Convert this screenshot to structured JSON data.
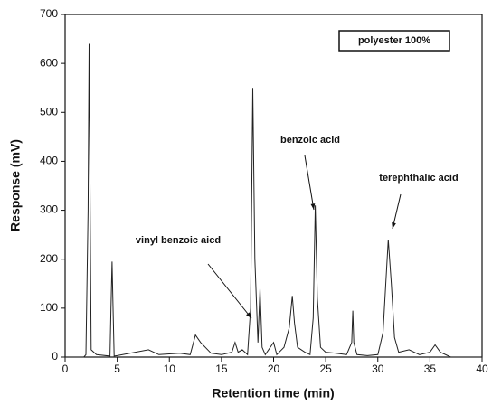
{
  "chart_data": {
    "type": "line",
    "x_label": "Retention time (min)",
    "y_label": "Response (mV)",
    "x": [
      0,
      1.8,
      2.0,
      2.2,
      2.3,
      2.4,
      2.5,
      3,
      4.3,
      4.4,
      4.5,
      4.6,
      4.7,
      5,
      8,
      9,
      11,
      12,
      12.5,
      13,
      14,
      15,
      16,
      16.3,
      16.6,
      17,
      17.5,
      17.8,
      18,
      18.2,
      18.5,
      18.7,
      18.9,
      19.2,
      20,
      20.3,
      21,
      21.5,
      21.8,
      22,
      22.3,
      23,
      23.5,
      23.8,
      24,
      24.2,
      24.5,
      25,
      26,
      27,
      27.5,
      27.6,
      27.7,
      28,
      29,
      30,
      30.5,
      31,
      31.3,
      31.6,
      32,
      33,
      34,
      35,
      35.5,
      36,
      37,
      40
    ],
    "series": [
      {
        "name": "polyester 100%",
        "color": "#222222",
        "values": [
          0,
          0,
          5,
          300,
          640,
          300,
          15,
          5,
          2,
          100,
          195,
          100,
          2,
          3,
          15,
          5,
          8,
          5,
          45,
          30,
          8,
          5,
          10,
          30,
          10,
          15,
          5,
          100,
          550,
          200,
          30,
          140,
          20,
          5,
          30,
          5,
          20,
          60,
          125,
          70,
          20,
          10,
          5,
          80,
          310,
          120,
          20,
          10,
          8,
          5,
          30,
          95,
          30,
          5,
          3,
          5,
          50,
          240,
          150,
          40,
          10,
          15,
          5,
          10,
          25,
          10,
          0,
          0
        ]
      }
    ],
    "annotations": [
      {
        "text": "vinyl benzoic aicd"
      },
      {
        "text": "benzoic acid"
      },
      {
        "text": "terephthalic acid"
      }
    ],
    "xlim": [
      0,
      40
    ],
    "xticks": [
      0,
      5,
      10,
      15,
      20,
      25,
      30,
      35,
      40
    ],
    "ylim": [
      0,
      700
    ],
    "yticks": [
      0,
      100,
      200,
      300,
      400,
      500,
      600,
      700
    ],
    "grid": false
  }
}
